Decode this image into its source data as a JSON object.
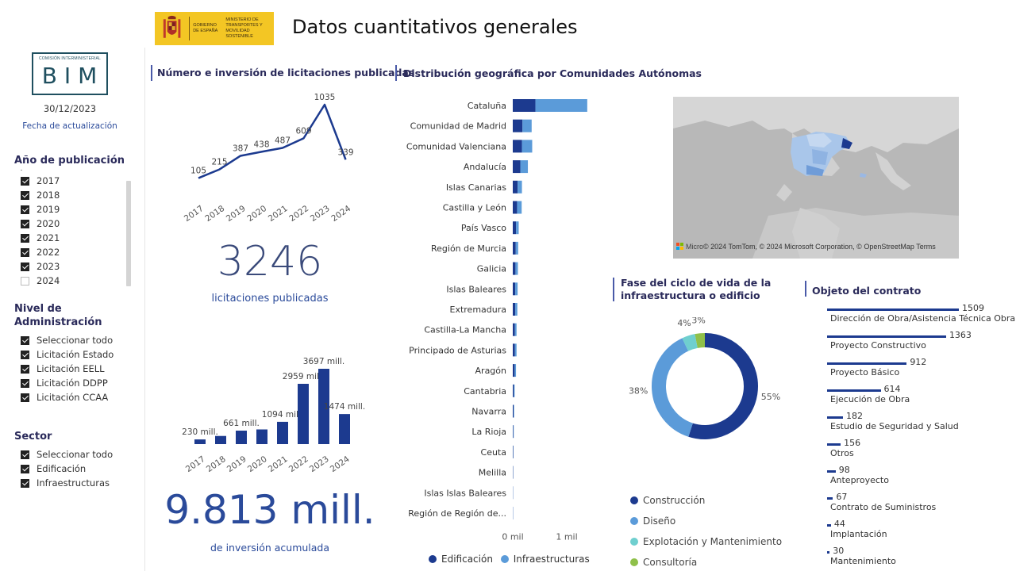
{
  "header": {
    "logo_text": [
      "GOBIERNO DE ESPAÑA",
      "MINISTERIO DE TRANSPORTES Y MOVILIDAD SOSTENIBLE"
    ],
    "title": "Datos cuantitativos generales"
  },
  "sidebar": {
    "bim_caption": "COMISIÓN INTERMINISTERIAL",
    "bim_text": "BIM",
    "update_date": "30/12/2023",
    "update_label": "Fecha de actualización",
    "year_slicer": {
      "title": "Año de publicación",
      "items": [
        {
          "label": "2017",
          "checked": true
        },
        {
          "label": "2018",
          "checked": true
        },
        {
          "label": "2019",
          "checked": true
        },
        {
          "label": "2020",
          "checked": true
        },
        {
          "label": "2021",
          "checked": true
        },
        {
          "label": "2022",
          "checked": true
        },
        {
          "label": "2023",
          "checked": true
        },
        {
          "label": "2024",
          "checked": false
        }
      ]
    },
    "admin_slicer": {
      "title_line1": "Nivel de",
      "title_line2": "Administración",
      "items": [
        {
          "label": "Seleccionar todo",
          "checked": true
        },
        {
          "label": "Licitación Estado",
          "checked": true
        },
        {
          "label": "Licitación EELL",
          "checked": true
        },
        {
          "label": "Licitación DDPP",
          "checked": true
        },
        {
          "label": "Licitación CCAA",
          "checked": true
        }
      ]
    },
    "sector_slicer": {
      "title": "Sector",
      "items": [
        {
          "label": "Seleccionar todo",
          "checked": true
        },
        {
          "label": "Edificación",
          "checked": true
        },
        {
          "label": "Infraestructuras",
          "checked": true
        }
      ]
    }
  },
  "tenders": {
    "section_title": "Número e inversión de licitaciones publicadas",
    "count_kpi": "3246",
    "count_label": "licitaciones publicadas",
    "investment_kpi": "9.813 mill.",
    "investment_label": "de inversión acumulada"
  },
  "geo": {
    "section_title": "Distribución geográfica por Comunidades Autónomas",
    "legend": [
      "Edificación",
      "Infraestructuras"
    ],
    "axis_ticks": [
      "0 mil",
      "1 mil"
    ],
    "map_attribution": "© 2024 TomTom, © 2024 Microsoft Corporation, © OpenStreetMap  Terms",
    "map_logo": "Micro"
  },
  "lifecycle": {
    "title_line1": "Fase del ciclo de vida de la",
    "title_line2": "infraestructura o edificio",
    "legend": [
      "Construcción",
      "Diseño",
      "Explotación y Mantenimiento",
      "Consultoría"
    ]
  },
  "contract": {
    "title": "Objeto del contrato"
  },
  "colors": {
    "dark_blue": "#1c3a8f",
    "light_blue": "#5b9bd9",
    "teal": "#6fcfcf",
    "green": "#8fc04a"
  },
  "chart_data": [
    {
      "type": "line",
      "x": [
        "2017",
        "2018",
        "2019",
        "2020",
        "2021",
        "2022",
        "2023",
        "2024"
      ],
      "values": [
        105,
        215,
        387,
        438,
        487,
        609,
        1035,
        339
      ],
      "data_labels": [
        "105",
        "215",
        "387",
        "438",
        "487",
        "609",
        "1035",
        "339"
      ],
      "title": "",
      "xlabel": "",
      "ylabel": ""
    },
    {
      "type": "bar",
      "categories": [
        "2017",
        "2018",
        "2019",
        "2020",
        "2021",
        "2022",
        "2023",
        "2024"
      ],
      "values": [
        230,
        400,
        661,
        720,
        1094,
        2959,
        3697,
        1474
      ],
      "data_labels": [
        "230 mill.",
        "",
        "661 mill.",
        "",
        "1094 mill.",
        "2959 mill.",
        "3697 mill.",
        "1474 mill."
      ],
      "title": "",
      "xlabel": "",
      "ylabel": ""
    },
    {
      "type": "bar",
      "orientation": "horizontal",
      "stacked": true,
      "categories": [
        "Cataluña",
        "Comunidad de Madrid",
        "Comunidad Valenciana",
        "Andalucía",
        "Islas Canarias",
        "Castilla y León",
        "País Vasco",
        "Región de Murcia",
        "Galicia",
        "Islas Baleares",
        "Extremadura",
        "Castilla-La Mancha",
        "Principado de Asturias",
        "Aragón",
        "Cantabria",
        "Navarra",
        "La Rioja",
        "Ceuta",
        "Melilla",
        "Islas Islas Baleares",
        "Región de Región de..."
      ],
      "series": [
        {
          "name": "Edificación",
          "values": [
            420,
            180,
            170,
            140,
            90,
            80,
            60,
            55,
            50,
            45,
            45,
            40,
            40,
            35,
            20,
            15,
            10,
            8,
            6,
            4,
            4
          ]
        },
        {
          "name": "Infraestructuras",
          "values": [
            960,
            170,
            190,
            140,
            80,
            85,
            50,
            45,
            45,
            45,
            40,
            30,
            30,
            25,
            15,
            10,
            8,
            4,
            3,
            3,
            3
          ]
        }
      ],
      "xlim": [
        0,
        1400
      ],
      "legend_position": "bottom"
    },
    {
      "type": "pie",
      "donut": true,
      "categories": [
        "Construcción",
        "Diseño",
        "Explotación y Mantenimiento",
        "Consultoría"
      ],
      "values": [
        55,
        38,
        4,
        3
      ],
      "data_labels": [
        "55%",
        "38%",
        "4%",
        "3%"
      ],
      "legend_position": "bottom"
    },
    {
      "type": "bar",
      "orientation": "horizontal",
      "categories": [
        "Dirección de Obra/Asistencia Técnica Obra",
        "Proyecto Constructivo",
        "Proyecto Básico",
        "Ejecución de Obra",
        "Estudio de Seguridad y Salud",
        "Otros",
        "Anteproyecto",
        "Contrato de Suministros",
        "Implantación",
        "Mantenimiento"
      ],
      "values": [
        1509,
        1363,
        912,
        614,
        182,
        156,
        98,
        67,
        44,
        30
      ],
      "data_labels": [
        "1509",
        "1363",
        "912",
        "614",
        "182",
        "156",
        "98",
        "67",
        "44",
        "30"
      ]
    }
  ]
}
